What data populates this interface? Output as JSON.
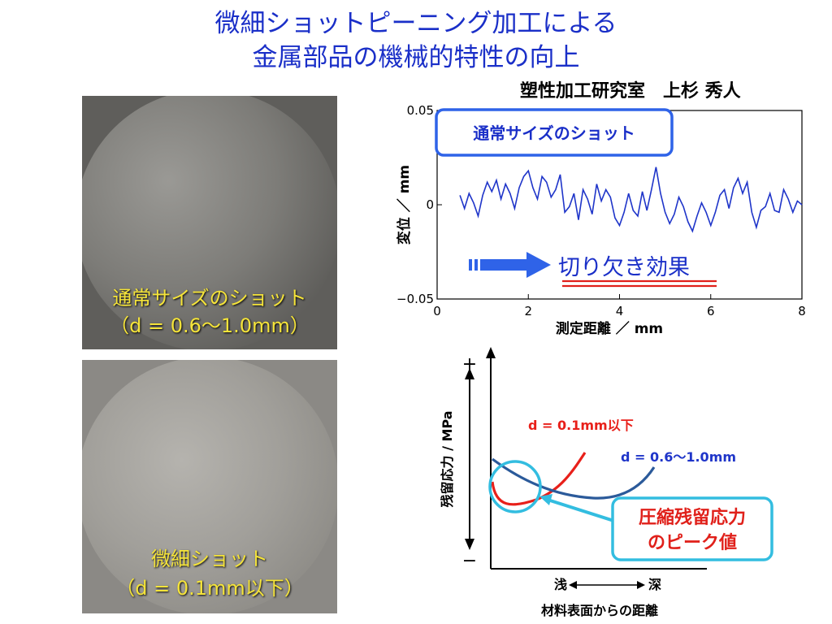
{
  "title": {
    "line1": "微細ショットピーニング加工による",
    "line2": "金属部品の機械的特性の向上"
  },
  "author": "塑性加工研究室　上杉 秀人",
  "photos": [
    {
      "caption_line1": "通常サイズのショット",
      "caption_line2": "（d = 0.6～1.0mm）"
    },
    {
      "caption_line1": "微細ショット",
      "caption_line2": "（d = 0.1mm以下）"
    }
  ],
  "colors": {
    "title": "#1a2fc8",
    "caption": "#f5e43a",
    "profile_line": "#1f35c9",
    "callout_border": "#2f63e8",
    "notch_text": "#1a2fc8",
    "notch_underline": "#e0201a",
    "curve_small": "#e8201a",
    "curve_large": "#2b5a9a",
    "peak_circle": "#33bde0",
    "peak_text": "#e0201a"
  },
  "chart_data": [
    {
      "type": "line",
      "xlabel": "測定距離 ／ mm",
      "ylabel": "変位 ／ mm",
      "xlim": [
        0,
        8
      ],
      "ylim": [
        -0.05,
        0.05
      ],
      "x_ticks": [
        "0",
        "2",
        "4",
        "6",
        "8"
      ],
      "y_ticks": [
        "0.05",
        "0",
        "−0.05"
      ],
      "x": [
        0.5,
        0.6,
        0.7,
        0.8,
        0.9,
        1.0,
        1.1,
        1.2,
        1.3,
        1.4,
        1.5,
        1.6,
        1.7,
        1.8,
        1.9,
        2.0,
        2.1,
        2.2,
        2.3,
        2.4,
        2.5,
        2.6,
        2.7,
        2.8,
        2.9,
        3.0,
        3.1,
        3.2,
        3.3,
        3.4,
        3.5,
        3.6,
        3.7,
        3.8,
        3.9,
        4.0,
        4.1,
        4.2,
        4.3,
        4.4,
        4.5,
        4.6,
        4.7,
        4.8,
        4.9,
        5.0,
        5.1,
        5.2,
        5.3,
        5.4,
        5.5,
        5.6,
        5.7,
        5.8,
        5.9,
        6.0,
        6.1,
        6.2,
        6.3,
        6.4,
        6.5,
        6.6,
        6.7,
        6.8,
        6.9,
        7.0,
        7.1,
        7.2,
        7.3,
        7.4,
        7.5,
        7.6,
        7.7,
        7.8,
        7.9,
        8.0
      ],
      "series": [
        {
          "values": [
            0.005,
            -0.002,
            0.006,
            0.001,
            -0.006,
            0.005,
            0.012,
            0.007,
            0.013,
            0.003,
            0.011,
            0.006,
            -0.002,
            0.009,
            0.015,
            0.018,
            0.009,
            0.003,
            0.015,
            0.012,
            0.004,
            0.008,
            0.016,
            -0.004,
            -0.001,
            0.006,
            -0.008,
            0.008,
            0.003,
            -0.005,
            0.011,
            0.002,
            0.008,
            0.004,
            -0.007,
            -0.011,
            -0.004,
            0.006,
            -0.003,
            -0.006,
            0.007,
            -0.003,
            0.008,
            0.02,
            0.006,
            -0.004,
            -0.01,
            -0.005,
            0.004,
            -0.001,
            -0.009,
            -0.014,
            -0.006,
            0.001,
            -0.004,
            -0.011,
            -0.004,
            0.005,
            0.008,
            -0.002,
            0.009,
            0.014,
            0.006,
            0.012,
            -0.004,
            -0.012,
            -0.003,
            -0.001,
            0.006,
            -0.003,
            -0.004,
            0.008,
            0.003,
            -0.004,
            0.002,
            0.0
          ]
        }
      ],
      "annotations": {
        "callout": "通常サイズのショット",
        "notch": "切り欠き効果"
      }
    },
    {
      "type": "line",
      "xlabel": "材料表面からの距離",
      "ylabel": "残留応力 / MPa",
      "x_ends": [
        "浅",
        "深"
      ],
      "y_ends": [
        "+",
        "−"
      ],
      "series": [
        {
          "name": "d = 0.1mm以下",
          "values": []
        },
        {
          "name": "d = 0.6～1.0mm",
          "values": []
        }
      ],
      "annotations": {
        "peak_line1": "圧縮残留応力",
        "peak_line2": "のピーク値"
      }
    }
  ]
}
